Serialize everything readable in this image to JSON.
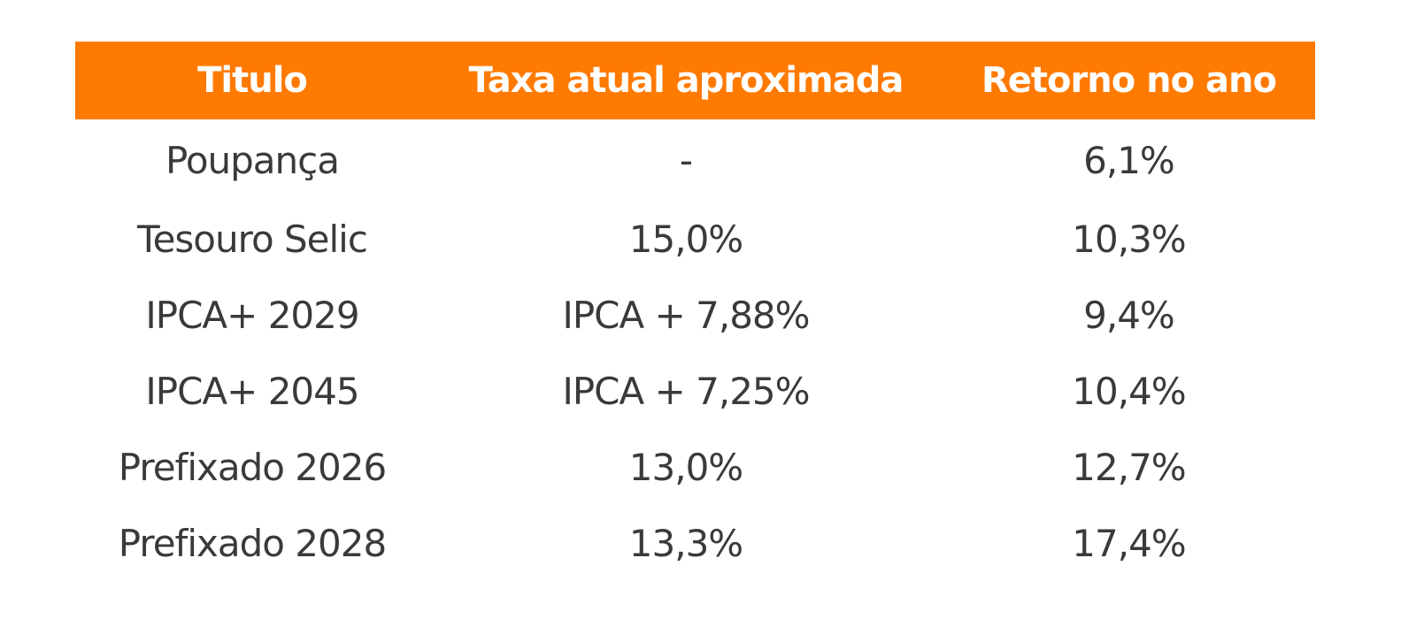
{
  "table": {
    "headers": [
      "Titulo",
      "Taxa atual aproximada",
      "Retorno no ano"
    ],
    "header_color": "#ff7a00",
    "rows": [
      [
        "Poupança",
        "-",
        "6,1%"
      ],
      [
        "Tesouro Selic",
        "15,0%",
        "10,3%"
      ],
      [
        "IPCA+ 2029",
        "IPCA + 7,88%",
        "9,4%"
      ],
      [
        "IPCA+ 2045",
        "IPCA + 7,25%",
        "10,4%"
      ],
      [
        "Prefixado 2026",
        "13,0%",
        "12,7%"
      ],
      [
        "Prefixado 2028",
        "13,3%",
        "17,4%"
      ]
    ]
  }
}
